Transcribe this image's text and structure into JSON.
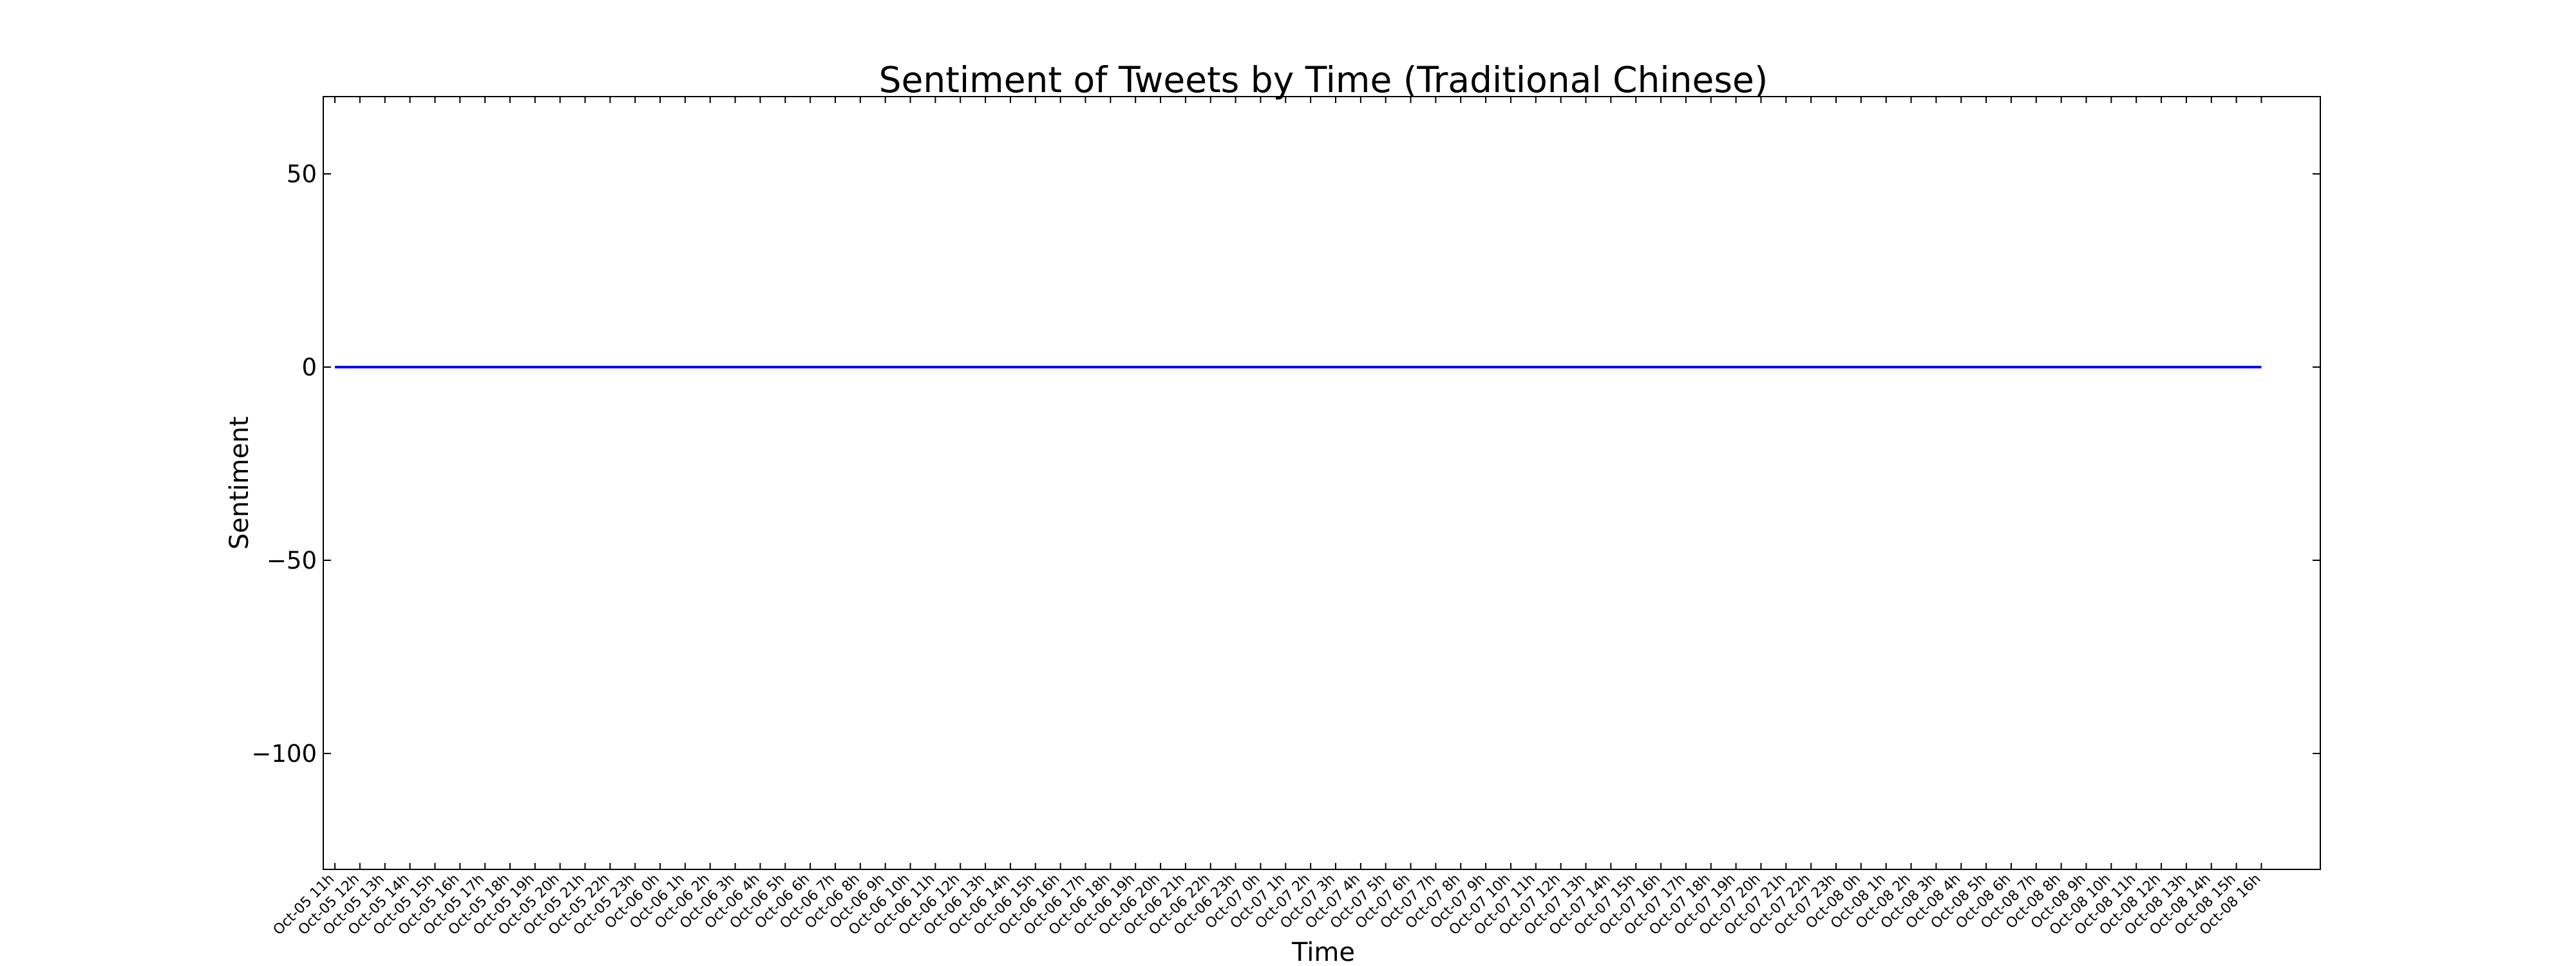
{
  "chart_data": {
    "type": "line",
    "title": "Sentiment of Tweets by Time (Traditional Chinese)",
    "xlabel": "Time",
    "ylabel": "Sentiment",
    "ylim": [
      -130,
      70
    ],
    "yticks": [
      50,
      0,
      -50,
      -100
    ],
    "ytick_labels": [
      "50",
      "0",
      "−50",
      "−100"
    ],
    "grid": false,
    "series_color": "#0000ff",
    "categories": [
      "Oct-05 11h",
      "Oct-05 12h",
      "Oct-05 13h",
      "Oct-05 14h",
      "Oct-05 15h",
      "Oct-05 16h",
      "Oct-05 17h",
      "Oct-05 18h",
      "Oct-05 19h",
      "Oct-05 20h",
      "Oct-05 21h",
      "Oct-05 22h",
      "Oct-05 23h",
      "Oct-06 0h",
      "Oct-06 1h",
      "Oct-06 2h",
      "Oct-06 3h",
      "Oct-06 4h",
      "Oct-06 5h",
      "Oct-06 6h",
      "Oct-06 7h",
      "Oct-06 8h",
      "Oct-06 9h",
      "Oct-06 10h",
      "Oct-06 11h",
      "Oct-06 12h",
      "Oct-06 13h",
      "Oct-06 14h",
      "Oct-06 15h",
      "Oct-06 16h",
      "Oct-06 17h",
      "Oct-06 18h",
      "Oct-06 19h",
      "Oct-06 20h",
      "Oct-06 21h",
      "Oct-06 22h",
      "Oct-06 23h",
      "Oct-07 0h",
      "Oct-07 1h",
      "Oct-07 2h",
      "Oct-07 3h",
      "Oct-07 4h",
      "Oct-07 5h",
      "Oct-07 6h",
      "Oct-07 7h",
      "Oct-07 8h",
      "Oct-07 9h",
      "Oct-07 10h",
      "Oct-07 11h",
      "Oct-07 12h",
      "Oct-07 13h",
      "Oct-07 14h",
      "Oct-07 15h",
      "Oct-07 16h",
      "Oct-07 17h",
      "Oct-07 18h",
      "Oct-07 19h",
      "Oct-07 20h",
      "Oct-07 21h",
      "Oct-07 22h",
      "Oct-07 23h",
      "Oct-08 0h",
      "Oct-08 1h",
      "Oct-08 2h",
      "Oct-08 3h",
      "Oct-08 4h",
      "Oct-08 5h",
      "Oct-08 6h",
      "Oct-08 7h",
      "Oct-08 8h",
      "Oct-08 9h",
      "Oct-08 10h",
      "Oct-08 11h",
      "Oct-08 12h",
      "Oct-08 13h",
      "Oct-08 14h",
      "Oct-08 15h",
      "Oct-08 16h"
    ],
    "values": [
      0,
      0,
      0,
      0,
      0,
      0,
      0,
      0,
      0,
      0,
      0,
      0,
      0,
      0,
      0,
      0,
      0,
      0,
      0,
      0,
      0,
      0,
      0,
      0,
      0,
      0,
      0,
      0,
      0,
      0,
      0,
      0,
      0,
      0,
      0,
      0,
      0,
      0,
      0,
      0,
      0,
      0,
      0,
      0,
      0,
      0,
      0,
      0,
      0,
      0,
      0,
      0,
      0,
      0,
      0,
      0,
      0,
      0,
      0,
      0,
      0,
      0,
      0,
      0,
      0,
      0,
      0,
      0,
      0,
      0,
      0,
      0,
      0,
      0,
      0,
      0,
      0,
      0
    ]
  }
}
